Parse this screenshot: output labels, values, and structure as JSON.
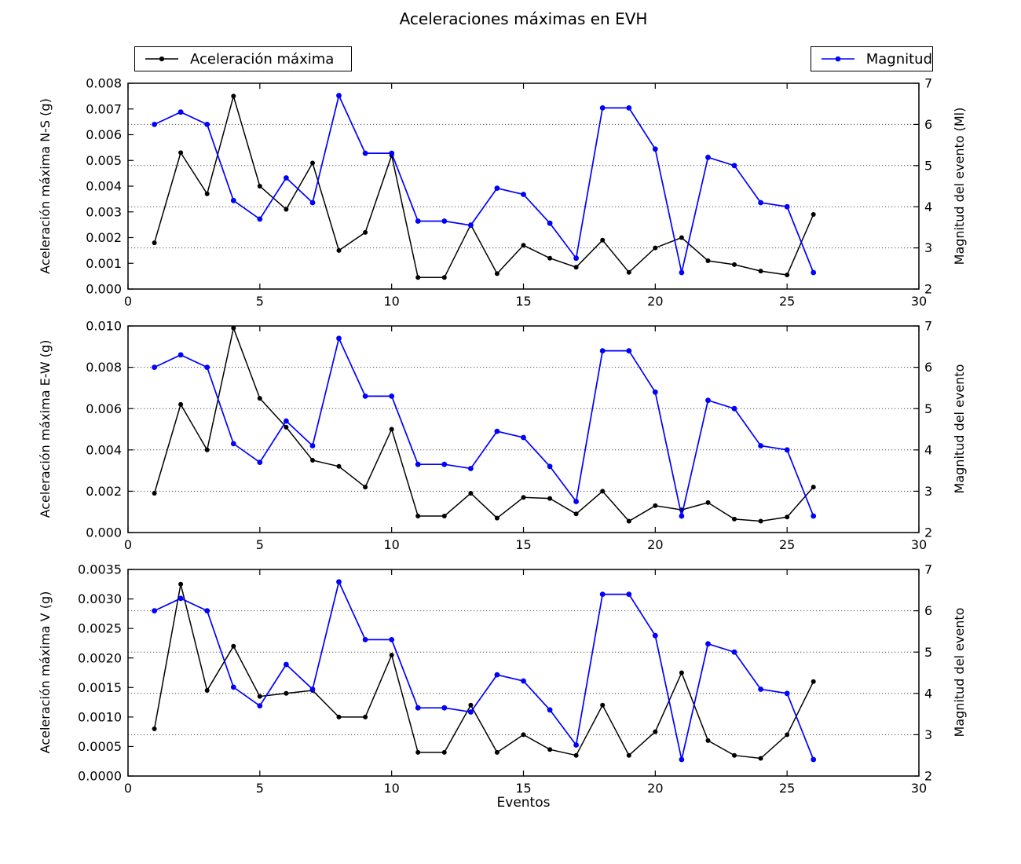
{
  "title": "Aceleraciones máximas en EVH",
  "xlabel": "Eventos",
  "legends": {
    "acceleration": {
      "label": "Aceleración máxima",
      "color": "#000000"
    },
    "magnitude": {
      "label": "Magnitud",
      "color": "#0000ff"
    }
  },
  "chart_data": [
    {
      "type": "line",
      "ylabel_left": "Aceleración máxima N-S (g)",
      "ylabel_right": "Magnitud del evento (Ml)",
      "xlim": [
        0,
        30
      ],
      "x_ticks": [
        "0",
        "5",
        "10",
        "15",
        "20",
        "25",
        "30"
      ],
      "ylim_left": [
        0,
        0.008
      ],
      "yticks_left": [
        "0.000",
        "0.001",
        "0.002",
        "0.003",
        "0.004",
        "0.005",
        "0.006",
        "0.007",
        "0.008"
      ],
      "ylim_right": [
        2,
        7
      ],
      "yticks_right": [
        "2",
        "3",
        "4",
        "5",
        "6",
        "7"
      ],
      "grid_right_values": [
        3,
        4,
        5,
        6
      ],
      "x": [
        1,
        2,
        3,
        4,
        5,
        6,
        7,
        8,
        9,
        10,
        11,
        12,
        13,
        14,
        15,
        16,
        17,
        18,
        19,
        20,
        21,
        22,
        23,
        24,
        25,
        26
      ],
      "series": [
        {
          "name": "Aceleración máxima",
          "axis": "left",
          "color": "#000000",
          "values": [
            0.0018,
            0.0053,
            0.0037,
            0.0075,
            0.004,
            0.0031,
            0.0049,
            0.0015,
            0.0022,
            0.0052,
            0.00045,
            0.00045,
            0.0025,
            0.0006,
            0.0017,
            0.0012,
            0.00085,
            0.0019,
            0.00065,
            0.0016,
            0.002,
            0.0011,
            0.00095,
            0.0007,
            0.00055,
            0.0029
          ]
        },
        {
          "name": "Magnitud",
          "axis": "right",
          "color": "#0000ff",
          "values": [
            6.0,
            6.3,
            6.0,
            4.15,
            3.7,
            4.7,
            4.1,
            6.7,
            5.3,
            5.3,
            3.65,
            3.65,
            3.55,
            4.45,
            4.3,
            3.6,
            2.75,
            6.4,
            6.4,
            5.4,
            2.4,
            5.2,
            5.0,
            4.1,
            4.0,
            2.4
          ]
        }
      ]
    },
    {
      "type": "line",
      "ylabel_left": "Aceleración máxima E-W (g)",
      "ylabel_right": "Magnitud del evento",
      "xlim": [
        0,
        30
      ],
      "x_ticks": [
        "0",
        "5",
        "10",
        "15",
        "20",
        "25",
        "30"
      ],
      "ylim_left": [
        0,
        0.01
      ],
      "yticks_left": [
        "0.000",
        "0.002",
        "0.004",
        "0.006",
        "0.008",
        "0.010"
      ],
      "ylim_right": [
        2,
        7
      ],
      "yticks_right": [
        "2",
        "3",
        "4",
        "5",
        "6",
        "7"
      ],
      "grid_right_values": [
        3,
        4,
        5,
        6
      ],
      "x": [
        1,
        2,
        3,
        4,
        5,
        6,
        7,
        8,
        9,
        10,
        11,
        12,
        13,
        14,
        15,
        16,
        17,
        18,
        19,
        20,
        21,
        22,
        23,
        24,
        25,
        26
      ],
      "series": [
        {
          "name": "Aceleración máxima",
          "axis": "left",
          "color": "#000000",
          "values": [
            0.0019,
            0.0062,
            0.004,
            0.0099,
            0.0065,
            0.0051,
            0.0035,
            0.0032,
            0.0022,
            0.005,
            0.0008,
            0.0008,
            0.0019,
            0.0007,
            0.0017,
            0.00165,
            0.0009,
            0.002,
            0.00055,
            0.0013,
            0.0011,
            0.00145,
            0.00065,
            0.00055,
            0.00075,
            0.0022
          ]
        },
        {
          "name": "Magnitud",
          "axis": "right",
          "color": "#0000ff",
          "values": [
            6.0,
            6.3,
            6.0,
            4.15,
            3.7,
            4.7,
            4.1,
            6.7,
            5.3,
            5.3,
            3.65,
            3.65,
            3.55,
            4.45,
            4.3,
            3.6,
            2.75,
            6.4,
            6.4,
            5.4,
            2.4,
            5.2,
            5.0,
            4.1,
            4.0,
            2.4
          ]
        }
      ]
    },
    {
      "type": "line",
      "ylabel_left": "Aceleración máxima V (g)",
      "ylabel_right": "Magnitud del evento",
      "xlim": [
        0,
        30
      ],
      "x_ticks": [
        "0",
        "5",
        "10",
        "15",
        "20",
        "25",
        "30"
      ],
      "ylim_left": [
        0,
        0.0035
      ],
      "yticks_left": [
        "0.0000",
        "0.0005",
        "0.0010",
        "0.0015",
        "0.0020",
        "0.0025",
        "0.0030",
        "0.0035"
      ],
      "ylim_right": [
        2,
        7
      ],
      "yticks_right": [
        "2",
        "3",
        "4",
        "5",
        "6",
        "7"
      ],
      "grid_right_values": [
        3,
        4,
        5,
        6
      ],
      "x": [
        1,
        2,
        3,
        4,
        5,
        6,
        7,
        8,
        9,
        10,
        11,
        12,
        13,
        14,
        15,
        16,
        17,
        18,
        19,
        20,
        21,
        22,
        23,
        24,
        25,
        26
      ],
      "series": [
        {
          "name": "Aceleración máxima",
          "axis": "left",
          "color": "#000000",
          "values": [
            0.0008,
            0.00325,
            0.00145,
            0.0022,
            0.00135,
            0.0014,
            0.00145,
            0.001,
            0.001,
            0.00205,
            0.0004,
            0.0004,
            0.0012,
            0.0004,
            0.0007,
            0.00045,
            0.00035,
            0.0012,
            0.00035,
            0.00075,
            0.00175,
            0.0006,
            0.00035,
            0.0003,
            0.0007,
            0.0016
          ]
        },
        {
          "name": "Magnitud",
          "axis": "right",
          "color": "#0000ff",
          "values": [
            6.0,
            6.3,
            6.0,
            4.15,
            3.7,
            4.7,
            4.1,
            6.7,
            5.3,
            5.3,
            3.65,
            3.65,
            3.55,
            4.45,
            4.3,
            3.6,
            2.75,
            6.4,
            6.4,
            5.4,
            2.4,
            5.2,
            5.0,
            4.1,
            4.0,
            2.4
          ]
        }
      ]
    }
  ]
}
